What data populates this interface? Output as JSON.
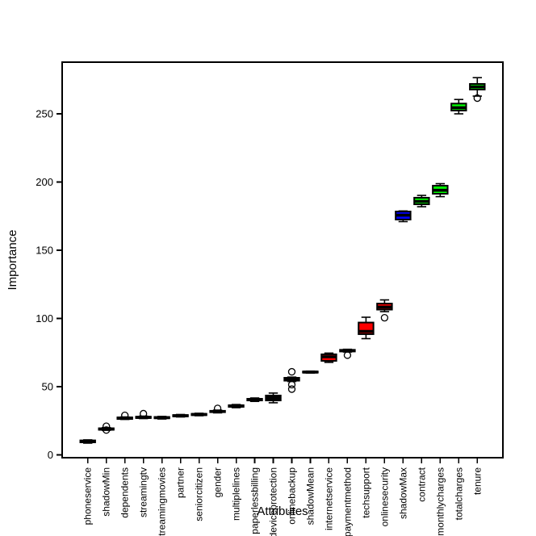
{
  "chart_data": {
    "type": "boxplot",
    "title": "",
    "xlabel": "Attributes",
    "ylabel": "Importance",
    "yticks": [
      0,
      50,
      100,
      150,
      200,
      250
    ],
    "ylim": [
      -2.5,
      287.5
    ],
    "grid": false,
    "legend": null,
    "background": "#ffffff",
    "frame_color": "#000000",
    "status_colors": {
      "rejected_visible_box": "#ff0000",
      "confirmed_box": "#00ff00",
      "shadow_box": "#0000ff",
      "thin_box_black": "#000000"
    },
    "categories": [
      "phoneservice",
      "shadowMin",
      "dependents",
      "streamingtv",
      "streamingmovies",
      "partner",
      "seniorcitizen",
      "gender",
      "multiplelines",
      "paperlessbilling",
      "deviceprotection",
      "onlinebackup",
      "shadowMean",
      "internetservice",
      "paymentmethod",
      "techsupport",
      "onlinesecurity",
      "shadowMax",
      "contract",
      "monthlycharges",
      "totalcharges",
      "tenure"
    ],
    "series": [
      {
        "name": "phoneservice",
        "low": 8.6,
        "q1": 9.2,
        "median": 9.9,
        "q3": 10.6,
        "high": 11.0,
        "outliers": [],
        "fill": "#000000"
      },
      {
        "name": "shadowMin",
        "low": 18.0,
        "q1": 18.4,
        "median": 18.9,
        "q3": 19.5,
        "high": 20.0,
        "outliers": [
          21.0,
          18.2
        ],
        "fill": "#000000"
      },
      {
        "name": "dependents",
        "low": 26.0,
        "q1": 26.3,
        "median": 26.9,
        "q3": 27.5,
        "high": 27.8,
        "outliers": [
          29.0
        ],
        "fill": "#000000"
      },
      {
        "name": "streamingtv",
        "low": 26.6,
        "q1": 27.0,
        "median": 27.5,
        "q3": 28.0,
        "high": 28.4,
        "outliers": [
          30.2
        ],
        "fill": "#000000"
      },
      {
        "name": "streamingmovies",
        "low": 26.3,
        "q1": 26.8,
        "median": 27.3,
        "q3": 27.8,
        "high": 28.2,
        "outliers": [],
        "fill": "#000000"
      },
      {
        "name": "partner",
        "low": 27.8,
        "q1": 28.2,
        "median": 28.7,
        "q3": 29.2,
        "high": 29.6,
        "outliers": [],
        "fill": "#000000"
      },
      {
        "name": "seniorcitizen",
        "low": 28.7,
        "q1": 29.1,
        "median": 29.6,
        "q3": 30.1,
        "high": 30.5,
        "outliers": [],
        "fill": "#000000"
      },
      {
        "name": "gender",
        "low": 30.8,
        "q1": 31.3,
        "median": 31.8,
        "q3": 32.3,
        "high": 32.8,
        "outliers": [
          34.1
        ],
        "fill": "#000000"
      },
      {
        "name": "multiplelines",
        "low": 34.6,
        "q1": 35.2,
        "median": 35.8,
        "q3": 36.4,
        "high": 36.9,
        "outliers": [],
        "fill": "#000000"
      },
      {
        "name": "paperlessbilling",
        "low": 39.2,
        "q1": 39.9,
        "median": 40.5,
        "q3": 41.1,
        "high": 41.7,
        "outliers": [],
        "fill": "#000000"
      },
      {
        "name": "deviceprotection",
        "low": 38.2,
        "q1": 39.9,
        "median": 41.7,
        "q3": 43.5,
        "high": 45.3,
        "outliers": [],
        "fill": "#000000"
      },
      {
        "name": "onlinebackup",
        "low": 53.8,
        "q1": 54.4,
        "median": 55.5,
        "q3": 56.5,
        "high": 57.0,
        "outliers": [
          60.9,
          51.5,
          48.2
        ],
        "fill": "#000000"
      },
      {
        "name": "shadowMean",
        "low": 60.0,
        "q1": 60.3,
        "median": 60.7,
        "q3": 61.1,
        "high": 61.4,
        "outliers": [],
        "fill": "#000000"
      },
      {
        "name": "internetservice",
        "low": 67.8,
        "q1": 68.9,
        "median": 71.9,
        "q3": 73.7,
        "high": 74.6,
        "outliers": [],
        "fill": "#ff0000"
      },
      {
        "name": "paymentmethod",
        "low": 75.4,
        "q1": 75.8,
        "median": 76.4,
        "q3": 77.0,
        "high": 77.4,
        "outliers": [
          73.1
        ],
        "fill": "#000000"
      },
      {
        "name": "techsupport",
        "low": 85.2,
        "q1": 88.5,
        "median": 90.5,
        "q3": 97.0,
        "high": 100.9,
        "outliers": [],
        "fill": "#ff0000"
      },
      {
        "name": "onlinesecurity",
        "low": 105.0,
        "q1": 106.5,
        "median": 108.3,
        "q3": 110.9,
        "high": 113.6,
        "outliers": [
          100.5
        ],
        "fill": "#ff0000"
      },
      {
        "name": "shadowMax",
        "low": 171.0,
        "q1": 172.5,
        "median": 175.7,
        "q3": 178.4,
        "high": 178.8,
        "outliers": [],
        "fill": "#0000ff"
      },
      {
        "name": "contract",
        "low": 181.9,
        "q1": 183.7,
        "median": 185.8,
        "q3": 188.5,
        "high": 190.2,
        "outliers": [],
        "fill": "#00ff00"
      },
      {
        "name": "monthlycharges",
        "low": 189.3,
        "q1": 191.4,
        "median": 194.0,
        "q3": 197.3,
        "high": 198.8,
        "outliers": [],
        "fill": "#00ff00"
      },
      {
        "name": "totalcharges",
        "low": 250.0,
        "q1": 252.4,
        "median": 254.5,
        "q3": 257.5,
        "high": 260.5,
        "outliers": [],
        "fill": "#00ff00"
      },
      {
        "name": "tenure",
        "low": 263.0,
        "q1": 267.8,
        "median": 269.8,
        "q3": 271.9,
        "high": 276.5,
        "outliers": [
          261.5
        ],
        "fill": "#00ff00"
      }
    ]
  }
}
